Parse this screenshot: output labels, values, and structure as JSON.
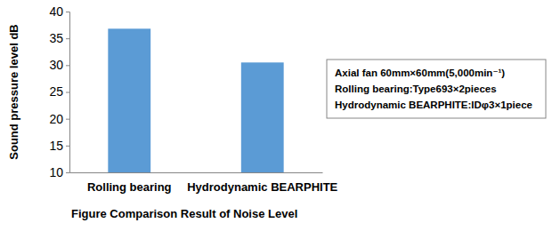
{
  "chart_data": {
    "type": "bar",
    "title": "Figure  Comparison Result of Noise Level",
    "y_label": "Sound pressure level  dB",
    "categories": [
      "Rolling bearing",
      "Hydrodynamic BEARPHITE"
    ],
    "values": [
      36.8,
      30.5
    ],
    "color": "#5b9bd5",
    "ylim": [
      10,
      40
    ],
    "yticks": [
      10,
      15,
      20,
      25,
      30,
      35,
      40
    ],
    "grid": false,
    "annotations": [
      "Axial fan  60mm×60mm(5,000min⁻¹)",
      "Rolling bearing:Type693×2pieces",
      "Hydrodynamic BEARPHITE:IDφ3×1piece"
    ]
  }
}
